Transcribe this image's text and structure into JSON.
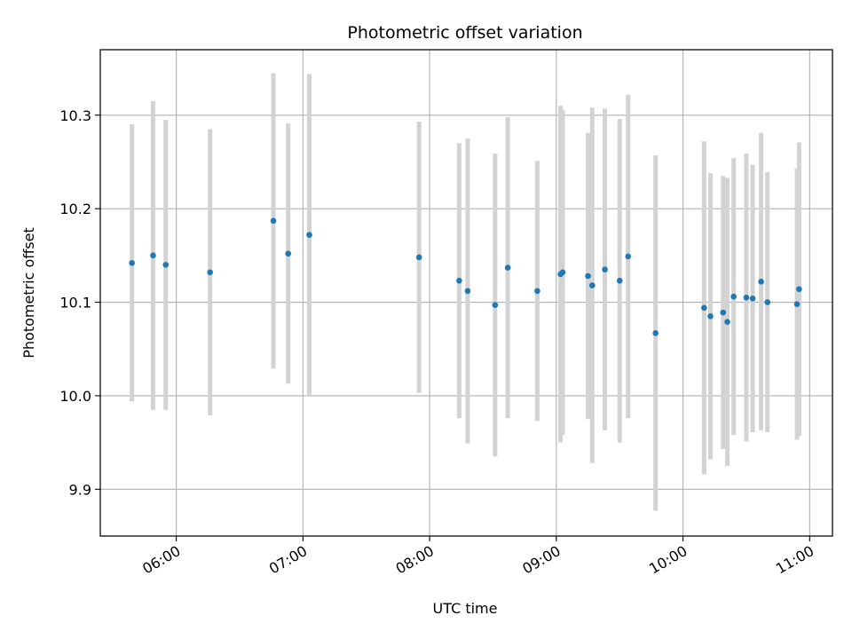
{
  "chart_data": {
    "type": "scatter",
    "title": "Photometric offset variation",
    "xlabel": "UTC time",
    "ylabel": "Photometric offset",
    "x_ticks": [
      "06:00",
      "07:00",
      "08:00",
      "09:00",
      "10:00",
      "11:00"
    ],
    "x_tick_hours": [
      6,
      7,
      8,
      9,
      10,
      11
    ],
    "xlim_hours": [
      5.4,
      11.18
    ],
    "y_ticks": [
      9.9,
      10.0,
      10.1,
      10.2,
      10.3
    ],
    "ylim": [
      9.85,
      10.37
    ],
    "grid": true,
    "colors": {
      "point": "#1f77b4",
      "errorbar": "#d3d3d3",
      "grid": "#b0b0b0"
    },
    "points": [
      {
        "t": "05:39",
        "y": 10.142,
        "err": 0.148
      },
      {
        "t": "05:49",
        "y": 10.15,
        "err": 0.165
      },
      {
        "t": "05:55",
        "y": 10.14,
        "err": 0.155
      },
      {
        "t": "06:16",
        "y": 10.132,
        "err": 0.153
      },
      {
        "t": "06:46",
        "y": 10.187,
        "err": 0.158
      },
      {
        "t": "06:53",
        "y": 10.152,
        "err": 0.139
      },
      {
        "t": "07:03",
        "y": 10.172,
        "err": 0.172
      },
      {
        "t": "07:55",
        "y": 10.148,
        "err": 0.145
      },
      {
        "t": "08:14",
        "y": 10.123,
        "err": 0.147
      },
      {
        "t": "08:18",
        "y": 10.112,
        "err": 0.163
      },
      {
        "t": "08:31",
        "y": 10.097,
        "err": 0.162
      },
      {
        "t": "08:37",
        "y": 10.137,
        "err": 0.161
      },
      {
        "t": "08:51",
        "y": 10.112,
        "err": 0.139
      },
      {
        "t": "09:02",
        "y": 10.13,
        "err": 0.18
      },
      {
        "t": "09:03",
        "y": 10.132,
        "err": 0.174
      },
      {
        "t": "09:15",
        "y": 10.128,
        "err": 0.153
      },
      {
        "t": "09:17",
        "y": 10.118,
        "err": 0.19
      },
      {
        "t": "09:23",
        "y": 10.135,
        "err": 0.172
      },
      {
        "t": "09:30",
        "y": 10.123,
        "err": 0.173
      },
      {
        "t": "09:34",
        "y": 10.149,
        "err": 0.173
      },
      {
        "t": "09:47",
        "y": 10.067,
        "err": 0.19
      },
      {
        "t": "10:10",
        "y": 10.094,
        "err": 0.178
      },
      {
        "t": "10:13",
        "y": 10.085,
        "err": 0.153
      },
      {
        "t": "10:19",
        "y": 10.089,
        "err": 0.146
      },
      {
        "t": "10:21",
        "y": 10.079,
        "err": 0.154
      },
      {
        "t": "10:24",
        "y": 10.106,
        "err": 0.148
      },
      {
        "t": "10:30",
        "y": 10.105,
        "err": 0.154
      },
      {
        "t": "10:33",
        "y": 10.104,
        "err": 0.143
      },
      {
        "t": "10:37",
        "y": 10.122,
        "err": 0.159
      },
      {
        "t": "10:40",
        "y": 10.1,
        "err": 0.139
      },
      {
        "t": "10:54",
        "y": 10.098,
        "err": 0.145
      },
      {
        "t": "10:55",
        "y": 10.114,
        "err": 0.157
      }
    ]
  }
}
